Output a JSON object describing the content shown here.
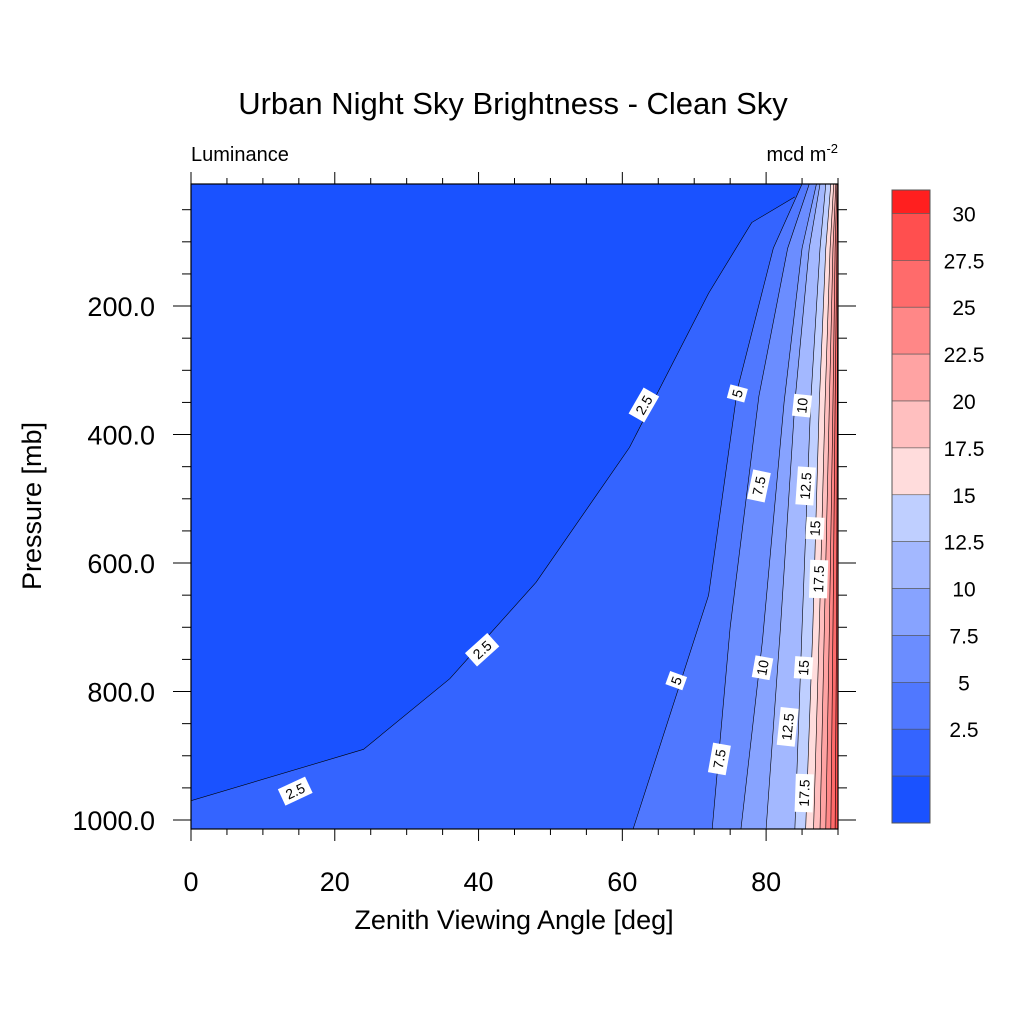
{
  "chart_data": {
    "type": "contour",
    "title": "Urban Night Sky Brightness - Clean Sky",
    "left_string": "Luminance",
    "right_string": "mcd m",
    "right_string_superscript": "-2",
    "xlabel": "Zenith Viewing Angle [deg]",
    "ylabel": "Pressure [mb]",
    "xlim": [
      0,
      90
    ],
    "ylim": [
      1014,
      10
    ],
    "x_ticks": [
      0,
      20,
      40,
      60,
      80
    ],
    "x_tick_labels": [
      "0",
      "20",
      "40",
      "60",
      "80"
    ],
    "y_ticks": [
      200,
      400,
      600,
      800,
      1000
    ],
    "y_tick_labels": [
      "200.0",
      "400.0",
      "600.0",
      "800.0",
      "1000.0"
    ],
    "contour_levels": [
      2.5,
      5,
      7.5,
      10,
      12.5,
      15,
      17.5,
      20,
      22.5,
      25,
      27.5,
      30
    ],
    "colorbar_labels": [
      "30",
      "27.5",
      "25",
      "22.5",
      "20",
      "17.5",
      "15",
      "12.5",
      "10",
      "7.5",
      "5",
      "2.5"
    ],
    "fill_colors": [
      "#1a52ff",
      "#3464ff",
      "#5078ff",
      "#6b8dff",
      "#87a3ff",
      "#a3b8ff",
      "#bfcfff",
      "#ffdcdc",
      "#ffbfbf",
      "#ffa3a3",
      "#ff8787",
      "#ff6b6b",
      "#ff4f4f",
      "#ff1f1f"
    ],
    "contours": [
      {
        "level": 2.5,
        "points": [
          [
            0,
            970
          ],
          [
            24,
            890
          ],
          [
            36,
            780
          ],
          [
            48,
            630
          ],
          [
            61,
            420
          ],
          [
            72,
            180
          ],
          [
            78,
            70
          ],
          [
            84,
            30
          ]
        ]
      },
      {
        "level": 5,
        "points": [
          [
            61.5,
            1014
          ],
          [
            72,
            650
          ],
          [
            76,
            330
          ],
          [
            81,
            110
          ],
          [
            85,
            10
          ]
        ]
      },
      {
        "level": 7.5,
        "points": [
          [
            72.5,
            1014
          ],
          [
            75,
            700
          ],
          [
            79,
            340
          ],
          [
            83,
            110
          ],
          [
            86,
            10
          ]
        ]
      },
      {
        "level": 10,
        "points": [
          [
            76.5,
            1014
          ],
          [
            79.5,
            720
          ],
          [
            82.5,
            350
          ],
          [
            85,
            110
          ],
          [
            87,
            10
          ]
        ]
      },
      {
        "level": 12.5,
        "points": [
          [
            80,
            1014
          ],
          [
            82,
            700
          ],
          [
            84,
            350
          ],
          [
            86,
            110
          ],
          [
            87.5,
            10
          ]
        ]
      },
      {
        "level": 15,
        "points": [
          [
            84,
            1014
          ],
          [
            85,
            700
          ],
          [
            86.2,
            350
          ],
          [
            87.5,
            110
          ],
          [
            88.3,
            10
          ]
        ]
      },
      {
        "level": 17.5,
        "points": [
          [
            85.5,
            1014
          ],
          [
            86.5,
            700
          ],
          [
            87.4,
            350
          ],
          [
            88.3,
            110
          ],
          [
            89,
            10
          ]
        ]
      },
      {
        "level": 20,
        "points": [
          [
            86.6,
            1014
          ],
          [
            87.4,
            700
          ],
          [
            88.2,
            350
          ],
          [
            88.9,
            110
          ],
          [
            89.4,
            10
          ]
        ]
      },
      {
        "level": 22.5,
        "points": [
          [
            87.5,
            1014
          ],
          [
            88.1,
            700
          ],
          [
            88.8,
            350
          ],
          [
            89.3,
            110
          ],
          [
            89.7,
            10
          ]
        ]
      },
      {
        "level": 25,
        "points": [
          [
            88.3,
            1014
          ],
          [
            88.8,
            700
          ],
          [
            89.3,
            350
          ],
          [
            89.6,
            110
          ],
          [
            89.85,
            10
          ]
        ]
      },
      {
        "level": 27.5,
        "points": [
          [
            89,
            1014
          ],
          [
            89.3,
            700
          ],
          [
            89.6,
            350
          ],
          [
            89.85,
            110
          ],
          [
            89.95,
            10
          ]
        ]
      },
      {
        "level": 30,
        "points": [
          [
            89.6,
            1014
          ],
          [
            89.8,
            700
          ],
          [
            89.9,
            350
          ],
          [
            89.97,
            110
          ],
          [
            90,
            10
          ]
        ]
      }
    ],
    "contour_labels": [
      {
        "text": "2.5",
        "x": 14.5,
        "y": 955,
        "angle": -25
      },
      {
        "text": "2.5",
        "x": 40.5,
        "y": 735,
        "angle": -42
      },
      {
        "text": "2.5",
        "x": 63,
        "y": 354,
        "angle": -60
      },
      {
        "text": "5",
        "x": 67.5,
        "y": 783,
        "angle": -70
      },
      {
        "text": "5",
        "x": 76,
        "y": 336,
        "angle": -75
      },
      {
        "text": "7.5",
        "x": 73.5,
        "y": 905,
        "angle": -80
      },
      {
        "text": "7.5",
        "x": 79,
        "y": 480,
        "angle": -78
      },
      {
        "text": "10",
        "x": 79.5,
        "y": 763,
        "angle": -80
      },
      {
        "text": "10",
        "x": 85,
        "y": 355,
        "angle": -84
      },
      {
        "text": "12.5",
        "x": 83,
        "y": 855,
        "angle": -84
      },
      {
        "text": "12.5",
        "x": 85.5,
        "y": 480,
        "angle": -86
      },
      {
        "text": "15",
        "x": 85.2,
        "y": 763,
        "angle": -86
      },
      {
        "text": "15",
        "x": 86.8,
        "y": 546,
        "angle": -87
      },
      {
        "text": "17.5",
        "x": 85.3,
        "y": 958,
        "angle": -88
      },
      {
        "text": "17.5",
        "x": 87.3,
        "y": 625,
        "angle": -88
      }
    ]
  }
}
